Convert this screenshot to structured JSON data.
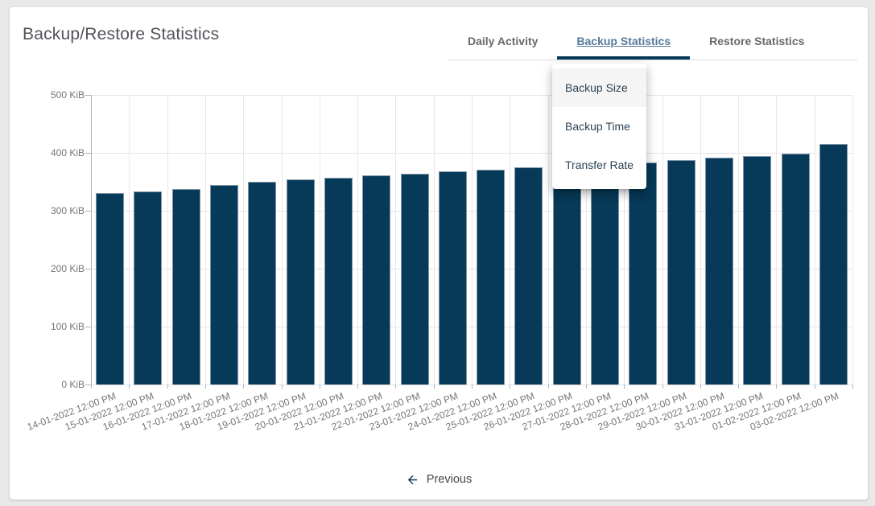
{
  "window": {
    "background_color": "#e9e9e9",
    "card_color": "#ffffff"
  },
  "header": {
    "title": "Backup/Restore Statistics"
  },
  "tabs": {
    "items": [
      {
        "label": "Daily Activity",
        "active": false
      },
      {
        "label": "Backup Statistics",
        "active": true
      },
      {
        "label": "Restore Statistics",
        "active": false
      }
    ],
    "active_color": "#56789b",
    "inactive_color": "#66696c",
    "indicator_color": "#073a59"
  },
  "dropdown_menu": {
    "items": [
      {
        "label": "Backup Size",
        "highlighted": true
      },
      {
        "label": "Backup Time",
        "highlighted": false
      },
      {
        "label": "Transfer Rate",
        "highlighted": false
      }
    ],
    "text_color": "#2b4254",
    "highlight_color": "#f5f5f5"
  },
  "chart_data": {
    "type": "bar",
    "title": "",
    "xlabel": "",
    "ylabel": "",
    "unit": "KiB",
    "categories": [
      "14-01-2022 12:00 PM",
      "15-01-2022 12:00 PM",
      "16-01-2022 12:00 PM",
      "17-01-2022 12:00 PM",
      "18-01-2022 12:00 PM",
      "19-01-2022 12:00 PM",
      "20-01-2022 12:00 PM",
      "21-01-2022 12:00 PM",
      "22-01-2022 12:00 PM",
      "23-01-2022 12:00 PM",
      "24-01-2022 12:00 PM",
      "25-01-2022 12:00 PM",
      "26-01-2022 12:00 PM",
      "27-01-2022 12:00 PM",
      "28-01-2022 12:00 PM",
      "29-01-2022 12:00 PM",
      "30-01-2022 12:00 PM",
      "31-01-2022 12:00 PM",
      "01-02-2022 12:00 PM",
      "03-02-2022 12:00 PM"
    ],
    "values": [
      330,
      334,
      338,
      345,
      350,
      354,
      357,
      361,
      364,
      368,
      371,
      375,
      378,
      381,
      384,
      387,
      391,
      395,
      399,
      415
    ],
    "ylim": [
      0,
      500
    ],
    "yticks": [
      {
        "value": 0,
        "label": "0 KiB"
      },
      {
        "value": 100,
        "label": "100 KiB"
      },
      {
        "value": 200,
        "label": "200 KiB"
      },
      {
        "value": 300,
        "label": "300 KiB"
      },
      {
        "value": 400,
        "label": "400 KiB"
      },
      {
        "value": 500,
        "label": "500 KiB"
      }
    ],
    "bar_color": "#073a59",
    "axis_label_color": "#757575",
    "grid": true,
    "legend": "none",
    "x_label_rotation_deg": -20
  },
  "pagination": {
    "previous_label": "Previous"
  }
}
